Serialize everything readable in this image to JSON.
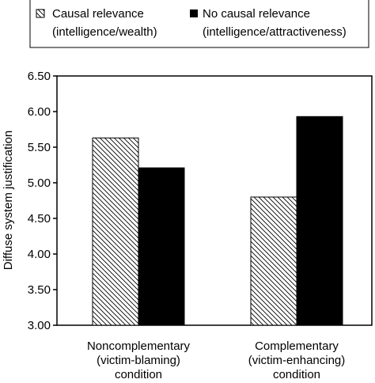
{
  "chart_data": {
    "type": "bar",
    "categories": [
      [
        "Noncomplementary",
        "(victim-blaming)",
        "condition"
      ],
      [
        "Complementary",
        "(victim-enhancing)",
        "condition"
      ]
    ],
    "series": [
      {
        "name": [
          "Causal relevance",
          "(intelligence/wealth)"
        ],
        "pattern": "hatched",
        "values": [
          5.63,
          4.8
        ]
      },
      {
        "name": [
          "No causal relevance",
          "(intelligence/attractiveness)"
        ],
        "pattern": "solid",
        "color": "#000000",
        "values": [
          5.21,
          5.93
        ]
      }
    ],
    "ylabel": "Diffuse system justification",
    "xlabel": "",
    "ylim": [
      3.0,
      6.5
    ],
    "yticks": [
      "3.00",
      "3.50",
      "4.00",
      "4.50",
      "5.00",
      "5.50",
      "6.00",
      "6.50"
    ],
    "grid": false,
    "legend_position": "top"
  }
}
